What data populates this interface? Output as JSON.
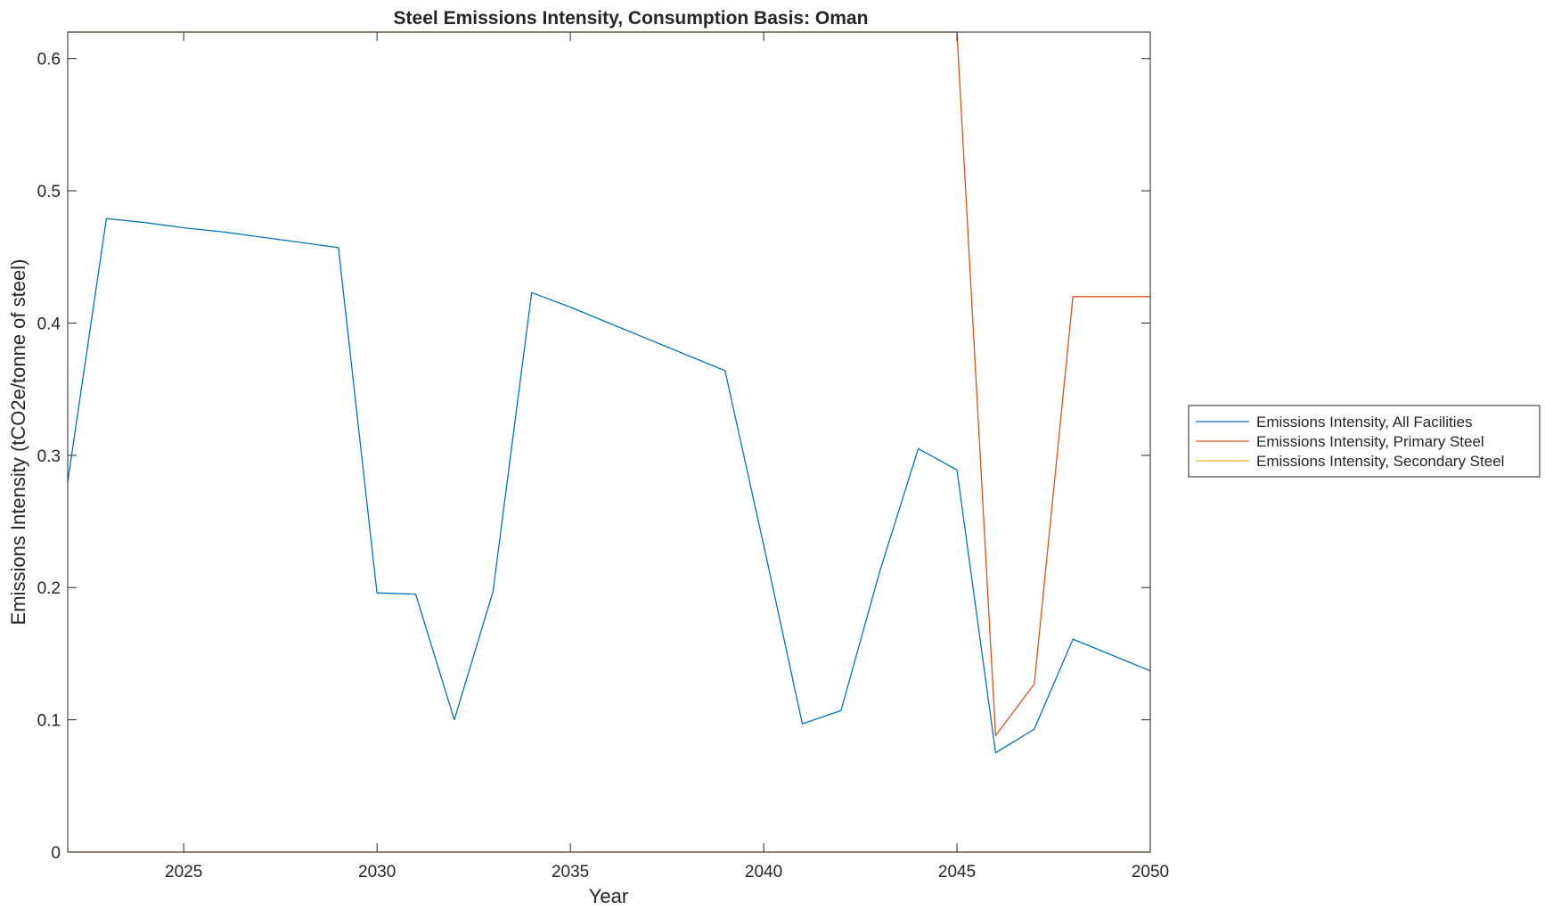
{
  "chart_data": {
    "type": "line",
    "title": "Steel Emissions Intensity, Consumption Basis: Oman",
    "xlabel": "Year",
    "ylabel": "Emissions Intensity (tCO2e/tonne of steel)",
    "xlim": [
      2022,
      2050
    ],
    "ylim": [
      0,
      0.62
    ],
    "xticks": [
      2025,
      2030,
      2035,
      2040,
      2045,
      2050
    ],
    "yticks": [
      0,
      0.1,
      0.2,
      0.3,
      0.4,
      0.5,
      0.6
    ],
    "xtick_labels": [
      "2025",
      "2030",
      "2035",
      "2040",
      "2045",
      "2050"
    ],
    "ytick_labels": [
      "0",
      "0.1",
      "0.2",
      "0.3",
      "0.4",
      "0.5",
      "0.6"
    ],
    "grid": false,
    "legend_position": "outside-right",
    "x": [
      2022,
      2023,
      2024,
      2025,
      2026,
      2027,
      2028,
      2029,
      2030,
      2031,
      2032,
      2033,
      2034,
      2035,
      2036,
      2037,
      2038,
      2039,
      2040,
      2041,
      2042,
      2043,
      2044,
      2045,
      2046,
      2047,
      2048,
      2049,
      2050
    ],
    "series": [
      {
        "name": "Emissions Intensity, All Facilities",
        "color": "#0072bd",
        "values": [
          0.28,
          0.479,
          0.476,
          0.472,
          0.469,
          0.465,
          0.461,
          0.457,
          0.196,
          0.195,
          0.1,
          0.197,
          0.423,
          0.412,
          0.4,
          0.388,
          0.376,
          0.364,
          0.232,
          0.097,
          0.107,
          0.212,
          0.305,
          0.289,
          0.075,
          0.093,
          0.161,
          0.149,
          0.137
        ]
      },
      {
        "name": "Emissions Intensity, Primary Steel",
        "color": "#d95319",
        "values": [
          0.62,
          0.62,
          0.62,
          0.62,
          0.62,
          0.62,
          0.62,
          0.62,
          0.62,
          0.62,
          0.62,
          0.62,
          0.62,
          0.62,
          0.62,
          0.62,
          0.62,
          0.62,
          0.62,
          0.62,
          0.62,
          0.62,
          0.62,
          0.62,
          0.088,
          0.127,
          0.42,
          0.42,
          0.42
        ]
      },
      {
        "name": "Emissions Intensity, Secondary Steel",
        "color": "#edb120",
        "values": [
          0,
          0,
          0,
          0,
          0,
          0,
          0,
          0,
          0,
          0,
          0,
          0,
          0,
          0,
          0,
          0,
          0,
          0,
          0,
          0,
          0,
          0,
          0,
          0,
          0,
          0,
          0,
          0,
          0
        ]
      }
    ]
  }
}
